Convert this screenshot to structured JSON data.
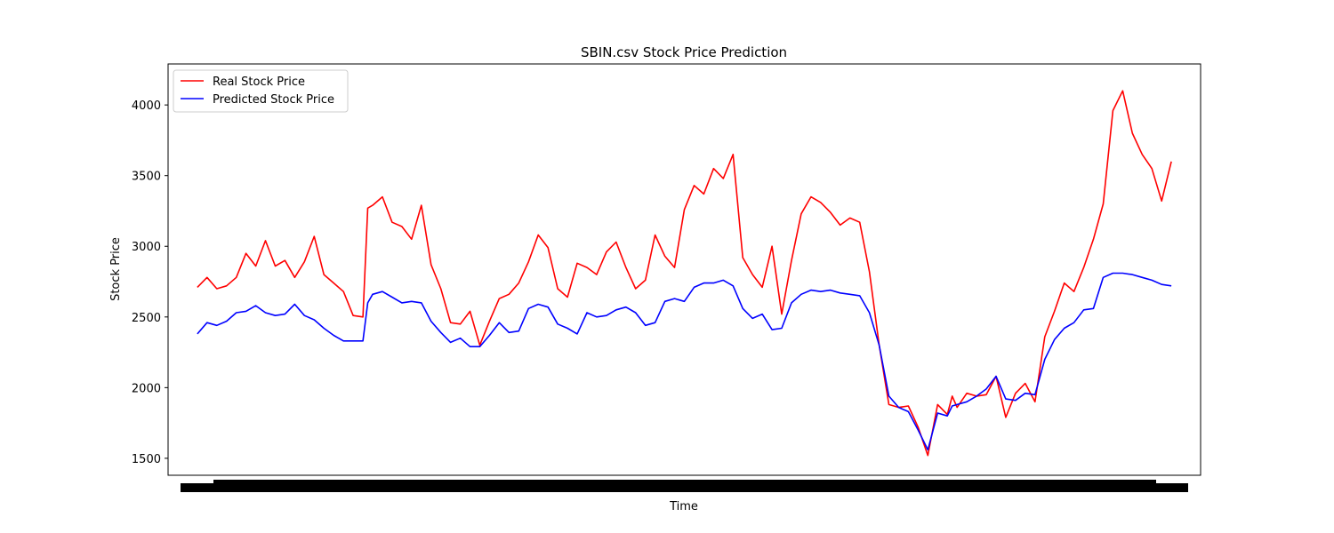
{
  "chart_data": {
    "type": "line",
    "title": "SBIN.csv Stock Price Prediction",
    "xlabel": "Time",
    "ylabel": "Stock Price",
    "ylim": [
      1380,
      4290
    ],
    "xlim": [
      -30,
      1030
    ],
    "yticks": [
      1500,
      2000,
      2500,
      3000,
      3500,
      4000
    ],
    "grid": false,
    "legend_position": "top-left",
    "x": [
      0,
      10,
      20,
      30,
      40,
      50,
      60,
      70,
      80,
      90,
      100,
      110,
      120,
      130,
      140,
      150,
      160,
      170,
      175,
      180,
      190,
      200,
      210,
      220,
      230,
      240,
      250,
      260,
      270,
      280,
      290,
      300,
      310,
      320,
      330,
      340,
      350,
      360,
      370,
      380,
      390,
      400,
      410,
      420,
      430,
      440,
      450,
      460,
      470,
      480,
      490,
      500,
      510,
      520,
      530,
      540,
      550,
      560,
      570,
      580,
      590,
      600,
      610,
      620,
      630,
      640,
      650,
      660,
      670,
      680,
      690,
      700,
      710,
      720,
      730,
      740,
      750,
      760,
      770,
      775,
      780,
      790,
      800,
      810,
      820,
      830,
      840,
      850,
      860,
      870,
      880,
      890,
      900,
      910,
      920,
      930,
      940,
      950,
      960,
      970,
      980,
      990,
      1000
    ],
    "series": [
      {
        "name": "Real Stock Price",
        "color": "#ff0000",
        "values": [
          2710,
          2780,
          2700,
          2720,
          2780,
          2950,
          2860,
          3040,
          2860,
          2900,
          2780,
          2890,
          3070,
          2800,
          2740,
          2680,
          2510,
          2500,
          3270,
          3290,
          3350,
          3170,
          3140,
          3050,
          3290,
          2870,
          2700,
          2460,
          2450,
          2540,
          2300,
          2470,
          2630,
          2660,
          2740,
          2890,
          3080,
          2990,
          2700,
          2640,
          2880,
          2850,
          2800,
          2960,
          3030,
          2850,
          2700,
          2760,
          3080,
          2930,
          2850,
          3260,
          3430,
          3370,
          3550,
          3480,
          3650,
          2920,
          2800,
          2710,
          3000,
          2520,
          2900,
          3230,
          3350,
          3310,
          3240,
          3150,
          3200,
          3170,
          2820,
          2300,
          1880,
          1860,
          1870,
          1720,
          1520,
          1880,
          1810,
          1940,
          1860,
          1960,
          1940,
          1950,
          2080,
          1790,
          1960,
          2030,
          1900,
          2360,
          2540,
          2740,
          2680,
          2850,
          3050,
          3300,
          3960,
          4100,
          3800,
          3650,
          3550,
          3320,
          3600
        ]
      },
      {
        "name": "Predicted Stock Price",
        "color": "#0000ff",
        "values": [
          2380,
          2460,
          2440,
          2470,
          2530,
          2540,
          2580,
          2530,
          2510,
          2520,
          2590,
          2510,
          2480,
          2420,
          2370,
          2330,
          2330,
          2330,
          2600,
          2660,
          2680,
          2640,
          2600,
          2610,
          2600,
          2470,
          2390,
          2320,
          2350,
          2290,
          2290,
          2370,
          2460,
          2390,
          2400,
          2560,
          2590,
          2570,
          2450,
          2420,
          2380,
          2530,
          2500,
          2510,
          2550,
          2570,
          2530,
          2440,
          2460,
          2610,
          2630,
          2610,
          2710,
          2740,
          2740,
          2760,
          2720,
          2560,
          2490,
          2520,
          2410,
          2420,
          2600,
          2660,
          2690,
          2680,
          2690,
          2670,
          2660,
          2650,
          2530,
          2300,
          1940,
          1860,
          1830,
          1700,
          1560,
          1820,
          1800,
          1870,
          1880,
          1900,
          1940,
          1990,
          2080,
          1920,
          1910,
          1960,
          1950,
          2200,
          2340,
          2420,
          2460,
          2550,
          2560,
          2780,
          2810,
          2810,
          2800,
          2780,
          2760,
          2730,
          2720
        ]
      }
    ]
  }
}
